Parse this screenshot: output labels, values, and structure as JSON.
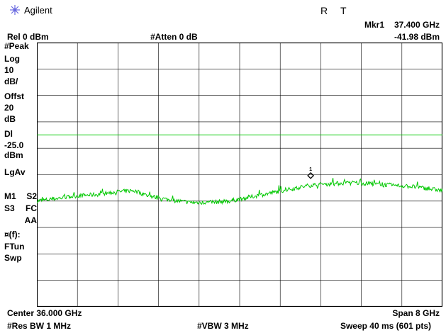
{
  "header": {
    "brand": "Agilent",
    "status_r": "R",
    "status_t": "T",
    "marker_label": "Mkr1",
    "marker_freq": "37.400 GHz",
    "marker_ampl": "-41.98 dBm",
    "ref_level": "Rel 0 dBm",
    "atten": "#Atten 0 dB"
  },
  "annotations": {
    "detector": "#Peak",
    "scale_type": "Log",
    "scale_value": "10",
    "scale_unit": "dB/",
    "offset_label": "Offst",
    "offset_value": "20",
    "offset_unit": "dB",
    "display_line_label": "Dl",
    "display_line_value": "-25.0",
    "display_line_unit": "dBm",
    "average_type": "LgAv",
    "m1": "M1",
    "s2": "S2",
    "s3": "S3",
    "fc": "FC",
    "aa": "AA",
    "ft_label": "¤(f):",
    "ftun": "FTun",
    "swp": "Swp"
  },
  "footer": {
    "center": "Center 36.000 GHz",
    "span": "Span 8 GHz",
    "res_bw": "#Res BW 1 MHz",
    "vbw": "#VBW 3 MHz",
    "sweep": "Sweep 40 ms (601 pts)"
  },
  "chart_data": {
    "type": "line",
    "x_unit": "GHz",
    "y_unit": "dBm",
    "xlim": [
      32.0,
      40.0
    ],
    "ylim": [
      -90.0,
      10.0
    ],
    "grid": true,
    "display_line": -25.0,
    "marker": {
      "label": "1",
      "x": 37.4,
      "y": -41.98
    },
    "series": [
      {
        "color": "#00c800",
        "x": [
          32.0,
          32.4,
          32.8,
          33.2,
          33.6,
          33.9,
          34.2,
          34.6,
          35.0,
          35.4,
          35.8,
          36.2,
          36.6,
          37.0,
          37.4,
          37.8,
          38.2,
          38.6,
          39.0,
          39.4,
          39.8,
          40.0
        ],
        "y": [
          -50.0,
          -49.0,
          -48.0,
          -47.5,
          -46.5,
          -46.0,
          -48.0,
          -49.5,
          -50.5,
          -50.5,
          -50.0,
          -48.5,
          -47.0,
          -45.5,
          -44.0,
          -43.5,
          -43.0,
          -43.5,
          -44.0,
          -44.5,
          -45.5,
          -46.0
        ]
      }
    ]
  },
  "colors": {
    "background": "#ffffff",
    "grid": "#000000",
    "trace": "#00c800",
    "display_line": "#00c800",
    "text": "#000000"
  }
}
